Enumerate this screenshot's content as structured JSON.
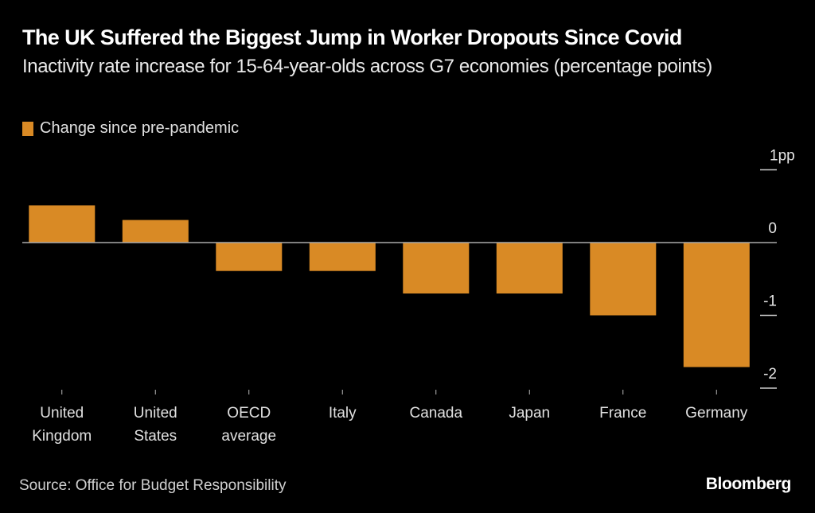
{
  "header": {
    "title": "The UK Suffered the Biggest Jump in Worker Dropouts Since Covid",
    "subtitle": "Inactivity rate increase for 15-64-year-olds across G7 economies (percentage points)"
  },
  "legend": {
    "label": "Change since pre-pandemic",
    "color": "#d98a25"
  },
  "footer": {
    "source": "Source: Office for Budget Responsibility",
    "brand": "Bloomberg"
  },
  "chart_data": {
    "type": "bar",
    "title": "The UK Suffered the Biggest Jump in Worker Dropouts Since Covid",
    "subtitle": "Inactivity rate increase for 15-64-year-olds across G7 economies (percentage points)",
    "xlabel": "",
    "ylabel": "",
    "categories": [
      [
        "United",
        "Kingdom"
      ],
      [
        "United",
        "States"
      ],
      [
        "OECD",
        "average"
      ],
      [
        "Italy"
      ],
      [
        "Canada"
      ],
      [
        "Japan"
      ],
      [
        "France"
      ],
      [
        "Germany"
      ]
    ],
    "series": [
      {
        "name": "Change since pre-pandemic",
        "color": "#d98a25",
        "values": [
          0.51,
          0.31,
          -0.39,
          -0.39,
          -0.7,
          -0.7,
          -1.0,
          -1.71
        ]
      }
    ],
    "ylim": [
      -2,
      1
    ],
    "yticks": [
      1,
      0,
      -1,
      -2
    ],
    "ytick_labels": [
      "1pp",
      "0",
      "-1",
      "-2"
    ],
    "y_axis_side": "right",
    "grid": false,
    "legend_position": "top-left",
    "zero_line": true
  }
}
